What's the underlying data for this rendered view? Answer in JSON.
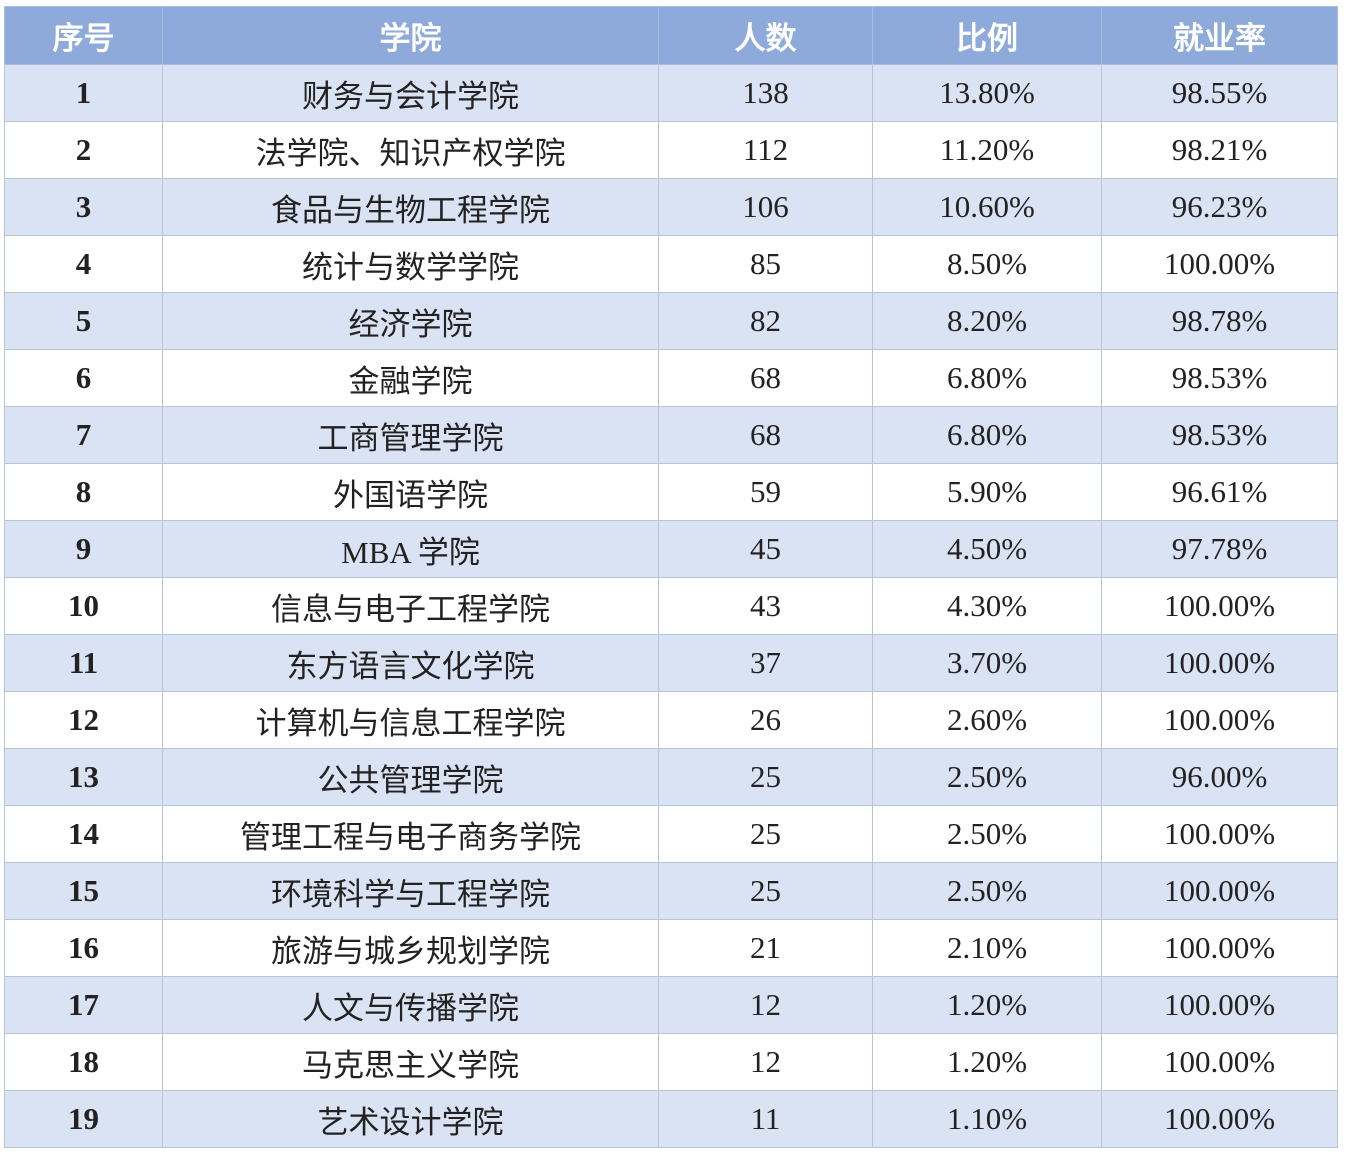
{
  "table": {
    "header": [
      "序号",
      "学院",
      "人数",
      "比例",
      "就业率"
    ],
    "rows": [
      [
        "1",
        "财务与会计学院",
        "138",
        "13.80%",
        "98.55%"
      ],
      [
        "2",
        "法学院、知识产权学院",
        "112",
        "11.20%",
        "98.21%"
      ],
      [
        "3",
        "食品与生物工程学院",
        "106",
        "10.60%",
        "96.23%"
      ],
      [
        "4",
        "统计与数学学院",
        "85",
        "8.50%",
        "100.00%"
      ],
      [
        "5",
        "经济学院",
        "82",
        "8.20%",
        "98.78%"
      ],
      [
        "6",
        "金融学院",
        "68",
        "6.80%",
        "98.53%"
      ],
      [
        "7",
        "工商管理学院",
        "68",
        "6.80%",
        "98.53%"
      ],
      [
        "8",
        "外国语学院",
        "59",
        "5.90%",
        "96.61%"
      ],
      [
        "9",
        "MBA 学院",
        "45",
        "4.50%",
        "97.78%"
      ],
      [
        "10",
        "信息与电子工程学院",
        "43",
        "4.30%",
        "100.00%"
      ],
      [
        "11",
        "东方语言文化学院",
        "37",
        "3.70%",
        "100.00%"
      ],
      [
        "12",
        "计算机与信息工程学院",
        "26",
        "2.60%",
        "100.00%"
      ],
      [
        "13",
        "公共管理学院",
        "25",
        "2.50%",
        "96.00%"
      ],
      [
        "14",
        "管理工程与电子商务学院",
        "25",
        "2.50%",
        "100.00%"
      ],
      [
        "15",
        "环境科学与工程学院",
        "25",
        "2.50%",
        "100.00%"
      ],
      [
        "16",
        "旅游与城乡规划学院",
        "21",
        "2.10%",
        "100.00%"
      ],
      [
        "17",
        "人文与传播学院",
        "12",
        "1.20%",
        "100.00%"
      ],
      [
        "18",
        "马克思主义学院",
        "12",
        "1.20%",
        "100.00%"
      ],
      [
        "19",
        "艺术设计学院",
        "11",
        "1.10%",
        "100.00%"
      ]
    ]
  }
}
